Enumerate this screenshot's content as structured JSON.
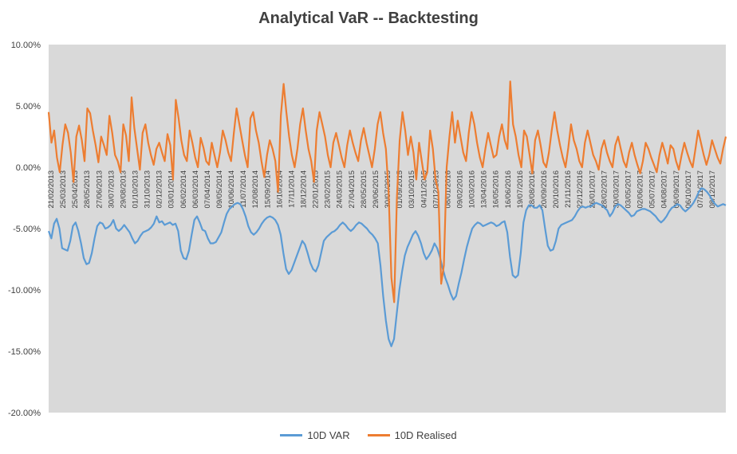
{
  "chart_data": {
    "type": "line",
    "title": "Analytical VaR -- Backtesting",
    "xlabel": "",
    "ylabel": "",
    "ylim": [
      -0.2,
      0.1
    ],
    "y_ticks": [
      "10.00%",
      "5.00%",
      "0.00%",
      "-5.00%",
      "-10.00%",
      "-15.00%",
      "-20.00%"
    ],
    "x_tick_labels": [
      "21/02/2013",
      "25/03/2013",
      "25/04/2013",
      "28/05/2013",
      "27/06/2013",
      "30/07/2013",
      "29/08/2013",
      "01/10/2013",
      "31/10/2013",
      "02/12/2013",
      "03/01/2014",
      "06/02/2014",
      "06/03/2014",
      "07/04/2014",
      "09/05/2014",
      "10/06/2014",
      "11/07/2014",
      "12/08/2014",
      "15/09/2014",
      "16/10/2014",
      "17/11/2014",
      "18/12/2014",
      "22/01/2015",
      "23/02/2015",
      "24/03/2015",
      "27/04/2015",
      "28/05/2015",
      "29/06/2015",
      "30/07/2015",
      "01/09/2015",
      "03/10/2015",
      "04/11/2015",
      "07/12/2015",
      "08/01/2016",
      "09/02/2016",
      "10/03/2016",
      "13/04/2016",
      "16/05/2016",
      "16/06/2016",
      "19/07/2016",
      "18/08/2016",
      "20/09/2016",
      "20/10/2016",
      "21/11/2016",
      "22/12/2016",
      "26/01/2017",
      "28/02/2017",
      "30/03/2017",
      "03/05/2017",
      "02/06/2017",
      "05/07/2017",
      "04/08/2017",
      "06/09/2017",
      "06/10/2017",
      "07/11/2017",
      "08/12/2017"
    ],
    "legend_position": "bottom",
    "grid": false,
    "plot_background": "#d9d9d9",
    "series": [
      {
        "name": "10D VAR",
        "color": "#5b9bd5",
        "values": [
          -0.052,
          -0.058,
          -0.046,
          -0.042,
          -0.05,
          -0.066,
          -0.067,
          -0.068,
          -0.06,
          -0.048,
          -0.045,
          -0.052,
          -0.062,
          -0.074,
          -0.079,
          -0.078,
          -0.07,
          -0.058,
          -0.048,
          -0.045,
          -0.046,
          -0.05,
          -0.049,
          -0.047,
          -0.043,
          -0.05,
          -0.052,
          -0.05,
          -0.047,
          -0.05,
          -0.053,
          -0.058,
          -0.062,
          -0.06,
          -0.056,
          -0.053,
          -0.052,
          -0.051,
          -0.049,
          -0.046,
          -0.04,
          -0.045,
          -0.044,
          -0.047,
          -0.046,
          -0.045,
          -0.047,
          -0.046,
          -0.052,
          -0.068,
          -0.074,
          -0.075,
          -0.068,
          -0.055,
          -0.043,
          -0.04,
          -0.045,
          -0.051,
          -0.052,
          -0.058,
          -0.062,
          -0.062,
          -0.061,
          -0.057,
          -0.053,
          -0.045,
          -0.038,
          -0.034,
          -0.032,
          -0.03,
          -0.029,
          -0.03,
          -0.034,
          -0.04,
          -0.048,
          -0.053,
          -0.055,
          -0.053,
          -0.05,
          -0.046,
          -0.043,
          -0.041,
          -0.04,
          -0.041,
          -0.043,
          -0.047,
          -0.055,
          -0.07,
          -0.083,
          -0.087,
          -0.084,
          -0.078,
          -0.072,
          -0.066,
          -0.06,
          -0.063,
          -0.07,
          -0.078,
          -0.083,
          -0.085,
          -0.08,
          -0.07,
          -0.06,
          -0.057,
          -0.055,
          -0.053,
          -0.052,
          -0.05,
          -0.047,
          -0.045,
          -0.047,
          -0.05,
          -0.052,
          -0.05,
          -0.047,
          -0.045,
          -0.046,
          -0.048,
          -0.05,
          -0.053,
          -0.055,
          -0.058,
          -0.062,
          -0.08,
          -0.105,
          -0.125,
          -0.14,
          -0.146,
          -0.14,
          -0.12,
          -0.1,
          -0.085,
          -0.072,
          -0.065,
          -0.06,
          -0.055,
          -0.052,
          -0.056,
          -0.062,
          -0.07,
          -0.075,
          -0.072,
          -0.068,
          -0.062,
          -0.066,
          -0.073,
          -0.082,
          -0.09,
          -0.096,
          -0.103,
          -0.108,
          -0.105,
          -0.095,
          -0.086,
          -0.075,
          -0.065,
          -0.057,
          -0.05,
          -0.047,
          -0.045,
          -0.046,
          -0.048,
          -0.047,
          -0.046,
          -0.045,
          -0.046,
          -0.048,
          -0.047,
          -0.045,
          -0.044,
          -0.053,
          -0.073,
          -0.088,
          -0.09,
          -0.088,
          -0.07,
          -0.045,
          -0.035,
          -0.031,
          -0.031,
          -0.033,
          -0.033,
          -0.031,
          -0.035,
          -0.05,
          -0.064,
          -0.068,
          -0.067,
          -0.06,
          -0.05,
          -0.047,
          -0.046,
          -0.045,
          -0.044,
          -0.043,
          -0.04,
          -0.036,
          -0.033,
          -0.032,
          -0.033,
          -0.032,
          -0.032,
          -0.03,
          -0.029,
          -0.03,
          -0.031,
          -0.033,
          -0.035,
          -0.04,
          -0.037,
          -0.032,
          -0.03,
          -0.031,
          -0.033,
          -0.035,
          -0.037,
          -0.04,
          -0.039,
          -0.036,
          -0.035,
          -0.034,
          -0.034,
          -0.035,
          -0.036,
          -0.038,
          -0.04,
          -0.043,
          -0.045,
          -0.043,
          -0.04,
          -0.036,
          -0.033,
          -0.032,
          -0.03,
          -0.031,
          -0.034,
          -0.036,
          -0.034,
          -0.032,
          -0.029,
          -0.025,
          -0.02,
          -0.017,
          -0.018,
          -0.02,
          -0.023,
          -0.027,
          -0.03,
          -0.032,
          -0.031,
          -0.03,
          -0.031
        ]
      },
      {
        "name": "10D Realised",
        "color": "#ed7d31",
        "values": [
          0.045,
          0.02,
          0.03,
          0.008,
          -0.004,
          0.018,
          0.035,
          0.028,
          0.012,
          -0.012,
          0.025,
          0.034,
          0.022,
          0.005,
          0.048,
          0.044,
          0.03,
          0.018,
          0.004,
          0.025,
          0.018,
          0.01,
          0.042,
          0.028,
          0.01,
          0.005,
          -0.004,
          0.035,
          0.026,
          0.005,
          0.057,
          0.032,
          0.015,
          -0.002,
          0.028,
          0.035,
          0.02,
          0.01,
          0.002,
          0.015,
          0.02,
          0.012,
          0.005,
          0.027,
          0.018,
          -0.01,
          0.055,
          0.04,
          0.022,
          0.01,
          0.005,
          0.03,
          0.02,
          0.008,
          0.0,
          0.024,
          0.016,
          0.005,
          0.002,
          0.02,
          0.01,
          0.0,
          0.012,
          0.03,
          0.022,
          0.012,
          0.005,
          0.028,
          0.048,
          0.035,
          0.022,
          0.01,
          0.0,
          0.04,
          0.045,
          0.03,
          0.02,
          0.005,
          -0.008,
          0.01,
          0.022,
          0.015,
          0.005,
          -0.02,
          0.042,
          0.068,
          0.045,
          0.025,
          0.01,
          0.0,
          0.015,
          0.035,
          0.048,
          0.03,
          0.015,
          0.005,
          -0.012,
          0.03,
          0.045,
          0.035,
          0.025,
          0.01,
          0.0,
          0.02,
          0.028,
          0.018,
          0.008,
          0.0,
          0.018,
          0.03,
          0.02,
          0.012,
          0.005,
          0.022,
          0.032,
          0.02,
          0.01,
          0.0,
          0.015,
          0.035,
          0.045,
          0.028,
          0.015,
          -0.02,
          -0.09,
          -0.11,
          -0.025,
          0.022,
          0.045,
          0.03,
          0.01,
          0.025,
          0.012,
          -0.01,
          0.02,
          0.005,
          -0.01,
          -0.004,
          0.03,
          0.015,
          -0.01,
          -0.02,
          -0.095,
          -0.08,
          0.0,
          0.025,
          0.045,
          0.02,
          0.038,
          0.025,
          0.012,
          0.005,
          0.028,
          0.045,
          0.035,
          0.02,
          0.008,
          0.0,
          0.015,
          0.028,
          0.018,
          0.008,
          0.01,
          0.025,
          0.035,
          0.022,
          0.015,
          0.07,
          0.035,
          0.025,
          0.01,
          0.0,
          0.03,
          0.025,
          0.01,
          -0.005,
          0.022,
          0.03,
          0.018,
          0.004,
          0.0,
          0.012,
          0.03,
          0.045,
          0.03,
          0.018,
          0.008,
          0.0,
          0.016,
          0.035,
          0.022,
          0.015,
          0.005,
          0.0,
          0.02,
          0.03,
          0.02,
          0.01,
          0.005,
          -0.002,
          0.015,
          0.022,
          0.012,
          0.005,
          0.0,
          0.018,
          0.025,
          0.015,
          0.005,
          0.0,
          0.012,
          0.02,
          0.01,
          0.002,
          -0.005,
          0.005,
          0.02,
          0.015,
          0.008,
          0.002,
          -0.004,
          0.01,
          0.02,
          0.012,
          0.003,
          0.018,
          0.015,
          0.005,
          -0.002,
          0.01,
          0.02,
          0.012,
          0.005,
          0.0,
          0.015,
          0.03,
          0.02,
          0.01,
          0.002,
          0.01,
          0.022,
          0.015,
          0.008,
          0.003,
          0.015,
          0.025
        ]
      }
    ]
  }
}
